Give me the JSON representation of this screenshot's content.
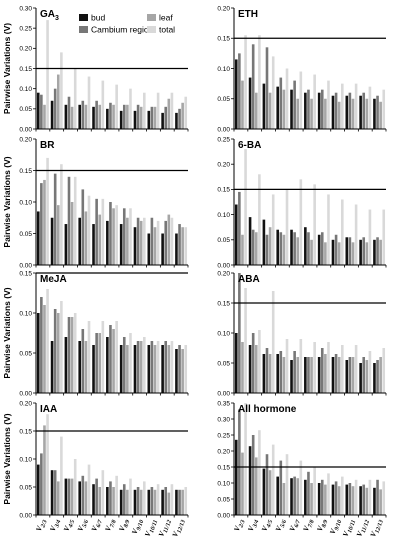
{
  "legend": [
    {
      "name": "bud",
      "color": "#111111"
    },
    {
      "name": "Cambium region",
      "color": "#777777"
    },
    {
      "name": "leaf",
      "color": "#a6a6a6"
    },
    {
      "name": "total",
      "color": "#d9d9d9"
    }
  ],
  "ylabel": "Pairwise Variations (V)",
  "y_ticks": [
    "0.00",
    "0.05",
    "0.10",
    "0.15",
    "0.20",
    "0.25",
    "0.30",
    "0.35"
  ],
  "x_ticks": [
    "V2/3",
    "V3/4",
    "V4/5",
    "V5/6",
    "V6/7",
    "V7/8",
    "V8/9",
    "V9/10",
    "V10/11",
    "V11/12",
    "V12/13"
  ],
  "chart_data": [
    {
      "type": "bar",
      "title": "GA3",
      "ylim": [
        0,
        0.3
      ],
      "threshold": 0.15,
      "categories": [
        "V2/3",
        "V3/4",
        "V4/5",
        "V5/6",
        "V6/7",
        "V7/8",
        "V8/9",
        "V9/10",
        "V10/11",
        "V11/12",
        "V12/13"
      ],
      "series": [
        {
          "name": "bud",
          "values": [
            0.09,
            0.07,
            0.06,
            0.06,
            0.055,
            0.05,
            0.045,
            0.045,
            0.045,
            0.04,
            0.04
          ]
        },
        {
          "name": "Cambium region",
          "values": [
            0.085,
            0.1,
            0.08,
            0.07,
            0.07,
            0.065,
            0.06,
            0.06,
            0.055,
            0.055,
            0.05
          ]
        },
        {
          "name": "leaf",
          "values": [
            0.06,
            0.135,
            0.055,
            0.06,
            0.06,
            0.06,
            0.06,
            0.055,
            0.055,
            0.075,
            0.065
          ]
        },
        {
          "name": "total",
          "values": [
            0.27,
            0.19,
            0.15,
            0.13,
            0.12,
            0.11,
            0.1,
            0.09,
            0.09,
            0.09,
            0.08
          ]
        }
      ]
    },
    {
      "type": "bar",
      "title": "ETH",
      "ylim": [
        0,
        0.2
      ],
      "threshold": 0.15,
      "categories": [
        "V2/3",
        "V3/4",
        "V4/5",
        "V5/6",
        "V6/7",
        "V7/8",
        "V8/9",
        "V9/10",
        "V10/11",
        "V11/12",
        "V12/13"
      ],
      "series": [
        {
          "name": "bud",
          "values": [
            0.115,
            0.085,
            0.075,
            0.07,
            0.065,
            0.06,
            0.06,
            0.055,
            0.055,
            0.055,
            0.05
          ]
        },
        {
          "name": "Cambium region",
          "values": [
            0.125,
            0.14,
            0.135,
            0.085,
            0.08,
            0.065,
            0.065,
            0.06,
            0.06,
            0.06,
            0.055
          ]
        },
        {
          "name": "leaf",
          "values": [
            0.08,
            0.06,
            0.06,
            0.065,
            0.05,
            0.05,
            0.05,
            0.045,
            0.05,
            0.05,
            0.045
          ]
        },
        {
          "name": "total",
          "values": [
            0.155,
            0.155,
            0.12,
            0.1,
            0.095,
            0.09,
            0.08,
            0.075,
            0.075,
            0.07,
            0.065
          ]
        }
      ]
    },
    {
      "type": "bar",
      "title": "BR",
      "ylim": [
        0,
        0.2
      ],
      "threshold": 0.15,
      "categories": [
        "V2/3",
        "V3/4",
        "V4/5",
        "V5/6",
        "V6/7",
        "V7/8",
        "V8/9",
        "V9/10",
        "V10/11",
        "V11/12",
        "V12/13"
      ],
      "series": [
        {
          "name": "bud",
          "values": [
            0.085,
            0.075,
            0.065,
            0.075,
            0.065,
            0.07,
            0.065,
            0.06,
            0.05,
            0.05,
            0.05
          ]
        },
        {
          "name": "Cambium region",
          "values": [
            0.13,
            0.145,
            0.14,
            0.12,
            0.105,
            0.1,
            0.09,
            0.075,
            0.075,
            0.07,
            0.065
          ]
        },
        {
          "name": "leaf",
          "values": [
            0.135,
            0.095,
            0.1,
            0.085,
            0.08,
            0.09,
            0.075,
            0.07,
            0.06,
            0.08,
            0.06
          ]
        },
        {
          "name": "total",
          "values": [
            0.17,
            0.16,
            0.14,
            0.11,
            0.105,
            0.095,
            0.09,
            0.075,
            0.07,
            0.075,
            0.06
          ]
        }
      ]
    },
    {
      "type": "bar",
      "title": "6-BA",
      "ylim": [
        0,
        0.25
      ],
      "threshold": 0.15,
      "categories": [
        "V2/3",
        "V3/4",
        "V4/5",
        "V5/6",
        "V6/7",
        "V7/8",
        "V8/9",
        "V9/10",
        "V10/11",
        "V11/12",
        "V12/13"
      ],
      "series": [
        {
          "name": "bud",
          "values": [
            0.12,
            0.095,
            0.09,
            0.07,
            0.07,
            0.075,
            0.06,
            0.05,
            0.055,
            0.05,
            0.05
          ]
        },
        {
          "name": "Cambium region",
          "values": [
            0.145,
            0.07,
            0.06,
            0.065,
            0.065,
            0.065,
            0.065,
            0.06,
            0.055,
            0.055,
            0.055
          ]
        },
        {
          "name": "leaf",
          "values": [
            0.06,
            0.065,
            0.075,
            0.06,
            0.055,
            0.05,
            0.045,
            0.045,
            0.045,
            0.045,
            0.05
          ]
        },
        {
          "name": "total",
          "values": [
            0.23,
            0.18,
            0.14,
            0.15,
            0.17,
            0.16,
            0.14,
            0.13,
            0.12,
            0.11,
            0.11
          ]
        }
      ]
    },
    {
      "type": "bar",
      "title": "MeJA",
      "ylim": [
        0,
        0.15
      ],
      "threshold": 0.15,
      "categories": [
        "V2/3",
        "V3/4",
        "V4/5",
        "V5/6",
        "V6/7",
        "V7/8",
        "V8/9",
        "V9/10",
        "V10/11",
        "V11/12",
        "V12/13"
      ],
      "series": [
        {
          "name": "bud",
          "values": [
            0.1,
            0.065,
            0.07,
            0.065,
            0.06,
            0.07,
            0.06,
            0.06,
            0.06,
            0.06,
            0.055
          ]
        },
        {
          "name": "Cambium region",
          "values": [
            0.12,
            0.105,
            0.095,
            0.08,
            0.075,
            0.085,
            0.07,
            0.065,
            0.065,
            0.065,
            0.06
          ]
        },
        {
          "name": "leaf",
          "values": [
            0.11,
            0.1,
            0.095,
            0.065,
            0.075,
            0.08,
            0.06,
            0.065,
            0.06,
            0.06,
            0.055
          ]
        },
        {
          "name": "total",
          "values": [
            0.13,
            0.115,
            0.1,
            0.09,
            0.09,
            0.09,
            0.075,
            0.07,
            0.065,
            0.065,
            0.06
          ]
        }
      ]
    },
    {
      "type": "bar",
      "title": "ABA",
      "ylim": [
        0,
        0.2
      ],
      "threshold": 0.15,
      "categories": [
        "V2/3",
        "V3/4",
        "V4/5",
        "V5/6",
        "V6/7",
        "V7/8",
        "V8/9",
        "V9/10",
        "V10/11",
        "V11/12",
        "V12/13"
      ],
      "series": [
        {
          "name": "bud",
          "values": [
            0.1,
            0.08,
            0.065,
            0.065,
            0.055,
            0.06,
            0.06,
            0.06,
            0.055,
            0.05,
            0.05
          ]
        },
        {
          "name": "Cambium region",
          "values": [
            0.2,
            0.1,
            0.075,
            0.07,
            0.07,
            0.06,
            0.075,
            0.065,
            0.06,
            0.06,
            0.055
          ]
        },
        {
          "name": "leaf",
          "values": [
            0.085,
            0.08,
            0.065,
            0.06,
            0.06,
            0.06,
            0.065,
            0.06,
            0.06,
            0.055,
            0.06
          ]
        },
        {
          "name": "total",
          "values": [
            0.175,
            0.105,
            0.17,
            0.09,
            0.09,
            0.085,
            0.085,
            0.08,
            0.08,
            0.07,
            0.075
          ]
        }
      ]
    },
    {
      "type": "bar",
      "title": "IAA",
      "ylim": [
        0,
        0.2
      ],
      "threshold": 0.15,
      "categories": [
        "V2/3",
        "V3/4",
        "V4/5",
        "V5/6",
        "V6/7",
        "V7/8",
        "V8/9",
        "V9/10",
        "V10/11",
        "V11/12",
        "V12/13"
      ],
      "series": [
        {
          "name": "bud",
          "values": [
            0.09,
            0.08,
            0.065,
            0.06,
            0.055,
            0.05,
            0.045,
            0.045,
            0.045,
            0.045,
            0.045
          ]
        },
        {
          "name": "Cambium region",
          "values": [
            0.11,
            0.08,
            0.065,
            0.07,
            0.065,
            0.06,
            0.055,
            0.05,
            0.05,
            0.05,
            0.045
          ]
        },
        {
          "name": "leaf",
          "values": [
            0.16,
            0.06,
            0.065,
            0.06,
            0.05,
            0.05,
            0.045,
            0.045,
            0.045,
            0.04,
            0.045
          ]
        },
        {
          "name": "total",
          "values": [
            0.18,
            0.14,
            0.1,
            0.09,
            0.08,
            0.07,
            0.065,
            0.06,
            0.055,
            0.055,
            0.05
          ]
        }
      ]
    },
    {
      "type": "bar",
      "title": "All hormone",
      "ylim": [
        0,
        0.35
      ],
      "threshold": 0.15,
      "categories": [
        "V2/3",
        "V3/4",
        "V4/5",
        "V5/6",
        "V6/7",
        "V7/8",
        "V8/9",
        "V9/10",
        "V10/11",
        "V11/12",
        "V12/13"
      ],
      "series": [
        {
          "name": "bud",
          "values": [
            0.235,
            0.215,
            0.145,
            0.12,
            0.115,
            0.11,
            0.1,
            0.095,
            0.095,
            0.09,
            0.085
          ]
        },
        {
          "name": "Cambium region",
          "values": [
            0.33,
            0.25,
            0.19,
            0.17,
            0.12,
            0.135,
            0.11,
            0.105,
            0.1,
            0.095,
            0.11
          ]
        },
        {
          "name": "leaf",
          "values": [
            0.195,
            0.18,
            0.14,
            0.1,
            0.115,
            0.1,
            0.095,
            0.09,
            0.09,
            0.085,
            0.08
          ]
        },
        {
          "name": "total",
          "values": [
            0.35,
            0.265,
            0.22,
            0.19,
            0.17,
            0.15,
            0.13,
            0.12,
            0.11,
            0.11,
            0.105
          ]
        }
      ]
    }
  ]
}
